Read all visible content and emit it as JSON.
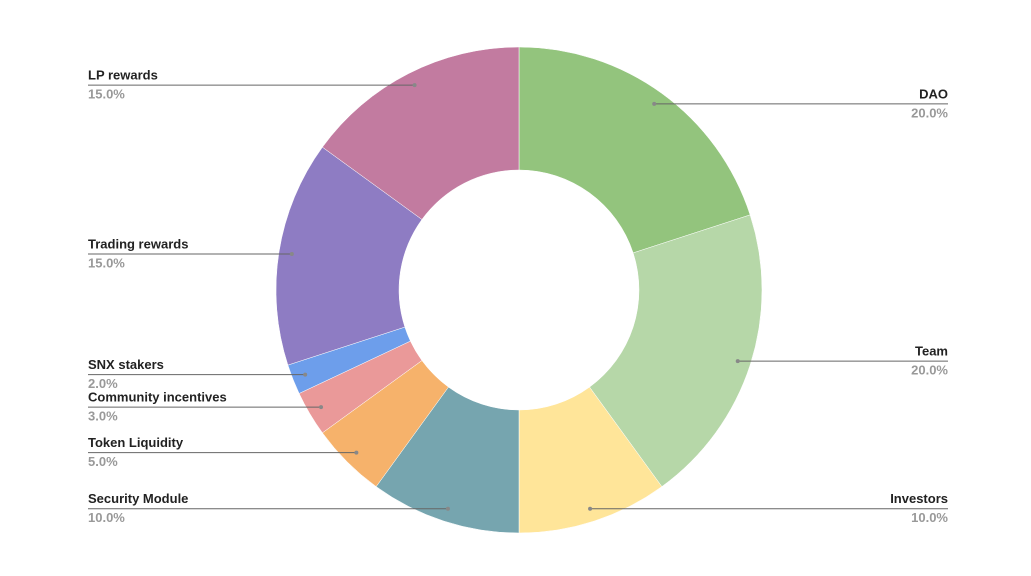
{
  "chart_data": {
    "type": "pie",
    "categories": [
      "DAO",
      "Team",
      "Investors",
      "Security Module",
      "Token Liquidity",
      "Community incentives",
      "SNX stakers",
      "Trading rewards",
      "LP rewards"
    ],
    "values": [
      20,
      20,
      10,
      10,
      5,
      3,
      2,
      15,
      15
    ],
    "value_labels": [
      "20.0%",
      "20.0%",
      "10.0%",
      "10.0%",
      "5.0%",
      "3.0%",
      "2.0%",
      "15.0%",
      "15.0%"
    ],
    "colors": [
      "#93c47d",
      "#b6d7a8",
      "#ffe599",
      "#76a5af",
      "#f6b26b",
      "#ea9999",
      "#6d9eeb",
      "#8e7cc3",
      "#c27ba0"
    ],
    "donut": true
  }
}
